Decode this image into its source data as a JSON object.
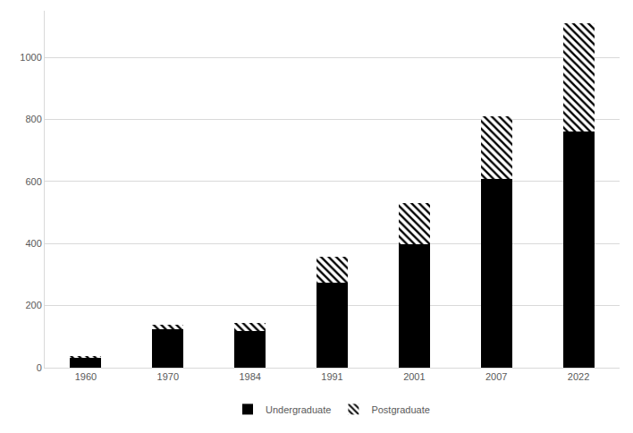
{
  "chart_data": {
    "type": "bar",
    "stacked": true,
    "categories": [
      "1960",
      "1970",
      "1984",
      "1991",
      "2001",
      "2007",
      "2022"
    ],
    "series": [
      {
        "name": "Undergraduate",
        "color": "#000000",
        "marker": "solid",
        "values": [
          32,
          125,
          118,
          275,
          397,
          607,
          760
        ]
      },
      {
        "name": "Postgraduate",
        "color": "#000000",
        "marker": "hatched",
        "values": [
          5,
          13,
          27,
          83,
          133,
          203,
          350
        ]
      }
    ],
    "ylim": [
      0,
      1150
    ],
    "yticks": [
      0,
      200,
      400,
      600,
      800,
      1000
    ],
    "grid": true,
    "legend": "bottom"
  }
}
